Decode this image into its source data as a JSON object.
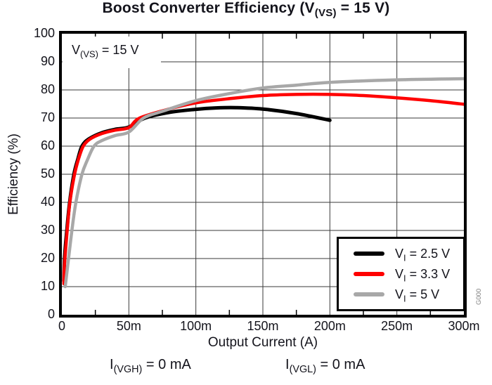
{
  "title": {
    "pre": "Boost Converter Efficiency (V",
    "sub": "(VS)",
    "post": " = 15 V)"
  },
  "annotation": {
    "pre": "V",
    "sub": "(VS)",
    "post": " = 15 V"
  },
  "footnotes": [
    {
      "pre": "I",
      "sub": "(VGH)",
      "post": " = 0 mA"
    },
    {
      "pre": "I",
      "sub": "(VGL)",
      "post": " = 0 mA"
    }
  ],
  "watermark": "G000",
  "legend": {
    "items": [
      {
        "pre": "V",
        "sub": "I",
        "post": " = 2.5 V"
      },
      {
        "pre": "V",
        "sub": "I",
        "post": " = 3.3 V"
      },
      {
        "pre": "V",
        "sub": "I",
        "post": " = 5 V"
      }
    ]
  },
  "colors": {
    "series": [
      "#000000",
      "#ff0000",
      "#a8a8a8"
    ],
    "grid": "#3a3a3a",
    "border": "#000000",
    "text": "#14141c",
    "watermark": "#808080"
  },
  "chart_data": {
    "type": "line",
    "title": "Boost Converter Efficiency (V(VS) = 15 V)",
    "xlabel": "Output Current (A)",
    "ylabel": "Efficiency (%)",
    "xlim": [
      0,
      0.3
    ],
    "ylim": [
      0,
      100
    ],
    "grid": true,
    "legend_position": "lower right",
    "annotation": "V(VS) = 15 V",
    "x_minor_step": 0.025,
    "x_ticks": {
      "values": [
        0,
        0.05,
        0.1,
        0.15,
        0.2,
        0.25,
        0.3
      ],
      "labels": [
        "0",
        "50m",
        "100m",
        "150m",
        "200m",
        "250m",
        "300m"
      ]
    },
    "y_ticks": {
      "values": [
        100,
        90,
        80,
        70,
        60,
        50,
        40,
        30,
        20,
        10,
        0
      ],
      "labels": [
        "100",
        "90",
        "80",
        "70",
        "60",
        "50",
        "40",
        "30",
        "20",
        "10",
        "0"
      ]
    },
    "series": [
      {
        "name": "VI = 2.5 V",
        "color": "#000000",
        "stroke_width": 5,
        "points": [
          [
            0.0015,
            12
          ],
          [
            0.002,
            20
          ],
          [
            0.0037,
            30
          ],
          [
            0.0058,
            40
          ],
          [
            0.009,
            50
          ],
          [
            0.012,
            55.5
          ],
          [
            0.015,
            60
          ],
          [
            0.02,
            62.5
          ],
          [
            0.03,
            64.8
          ],
          [
            0.04,
            66
          ],
          [
            0.05,
            66.8
          ],
          [
            0.062,
            70
          ],
          [
            0.08,
            72
          ],
          [
            0.1,
            73.1
          ],
          [
            0.115,
            73.6
          ],
          [
            0.13,
            73.7
          ],
          [
            0.15,
            73.2
          ],
          [
            0.175,
            71.6
          ],
          [
            0.2,
            69.2
          ]
        ]
      },
      {
        "name": "VI = 3.3 V",
        "color": "#ff0000",
        "stroke_width": 4.5,
        "points": [
          [
            0.0015,
            11
          ],
          [
            0.002,
            18
          ],
          [
            0.004,
            30
          ],
          [
            0.006,
            40
          ],
          [
            0.0095,
            50
          ],
          [
            0.0125,
            55.5
          ],
          [
            0.016,
            60
          ],
          [
            0.021,
            62.5
          ],
          [
            0.03,
            64.5
          ],
          [
            0.04,
            65.7
          ],
          [
            0.05,
            66.6
          ],
          [
            0.058,
            70
          ],
          [
            0.08,
            73.2
          ],
          [
            0.1,
            75.4
          ],
          [
            0.125,
            76.9
          ],
          [
            0.15,
            78
          ],
          [
            0.175,
            78.4
          ],
          [
            0.2,
            78.4
          ],
          [
            0.225,
            78
          ],
          [
            0.25,
            77.2
          ],
          [
            0.275,
            76.2
          ],
          [
            0.3,
            74.9
          ]
        ]
      },
      {
        "name": "VI = 5 V",
        "color": "#a8a8a8",
        "stroke_width": 4.5,
        "points": [
          [
            0.0025,
            10
          ],
          [
            0.005,
            20
          ],
          [
            0.0075,
            30
          ],
          [
            0.0105,
            40
          ],
          [
            0.015,
            50
          ],
          [
            0.019,
            55
          ],
          [
            0.024,
            60
          ],
          [
            0.03,
            62
          ],
          [
            0.04,
            63.8
          ],
          [
            0.05,
            65
          ],
          [
            0.061,
            70
          ],
          [
            0.075,
            72.4
          ],
          [
            0.1,
            76.2
          ],
          [
            0.125,
            78.7
          ],
          [
            0.15,
            80.7
          ],
          [
            0.175,
            81.7
          ],
          [
            0.2,
            82.7
          ],
          [
            0.25,
            83.6
          ],
          [
            0.3,
            84
          ]
        ]
      }
    ]
  }
}
